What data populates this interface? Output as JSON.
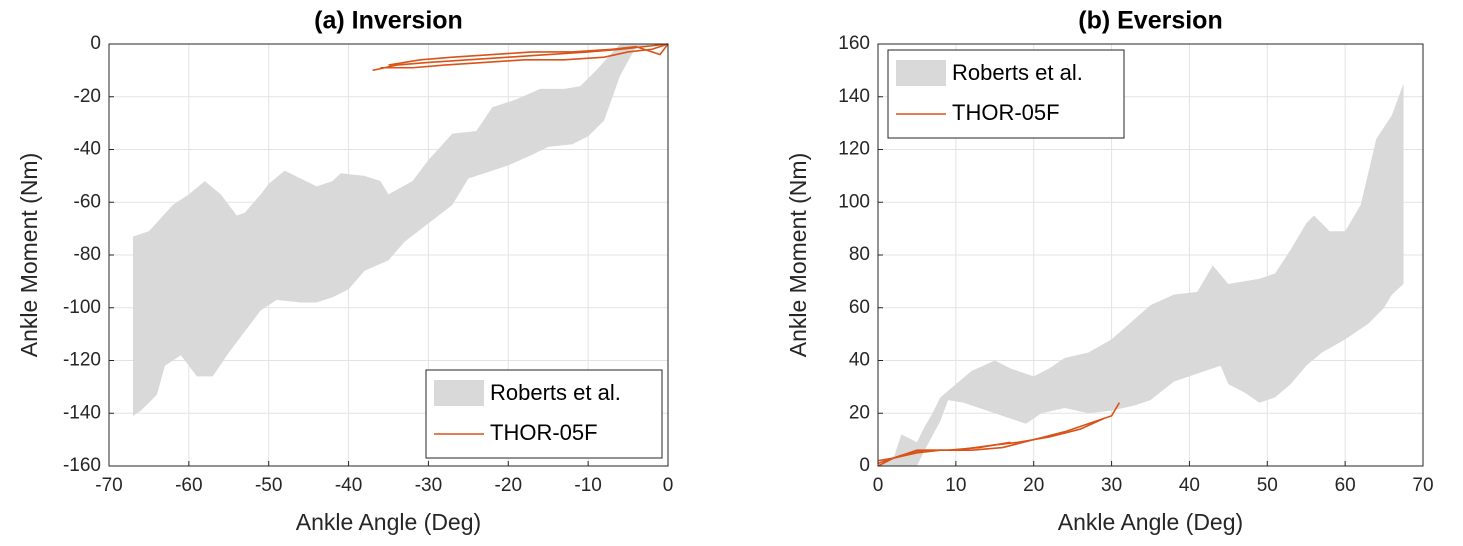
{
  "chart_data": [
    {
      "type": "corridor",
      "title": "(a) Inversion",
      "x_label": "Ankle Angle (Deg)",
      "y_label": "Ankle Moment (Nm)",
      "xlim": [
        -70,
        0
      ],
      "xticks": [
        -70,
        -60,
        -50,
        -40,
        -30,
        -20,
        -10,
        0
      ],
      "ylim": [
        -160,
        0
      ],
      "yticks": [
        -160,
        -140,
        -120,
        -100,
        -80,
        -60,
        -40,
        -20,
        0
      ],
      "grid": true,
      "legend": "lower right",
      "series": [
        {
          "name": "Roberts et al.",
          "color": "#d9d9d9",
          "x_upper": [
            -67,
            -65,
            -62,
            -60,
            -58,
            -56,
            -54,
            -53,
            -51,
            -50,
            -48,
            -46,
            -44,
            -42,
            -41,
            -38,
            -36,
            -35,
            -32,
            -30,
            -27,
            -24,
            -22,
            -19,
            -16,
            -13,
            -11,
            -9,
            -6,
            -5,
            0
          ],
          "upper": [
            -73,
            -71,
            -61,
            -57,
            -52,
            -57,
            -65,
            -64,
            -57,
            -53,
            -48,
            -51,
            -54,
            -52,
            -49,
            -50,
            -52,
            -57,
            -52,
            -44,
            -34,
            -33,
            -24,
            -21,
            -17,
            -17,
            -16,
            -10,
            0,
            0,
            0
          ],
          "x_lower": [
            -67,
            -66,
            -64,
            -63,
            -61,
            -59,
            -57,
            -55,
            -53,
            -51,
            -49,
            -46,
            -44,
            -42,
            -40,
            -38,
            -35,
            -33,
            -30,
            -27,
            -25,
            -20,
            -17,
            -15,
            -12,
            -10,
            -8,
            -6,
            -4,
            0
          ],
          "lower": [
            -141,
            -139,
            -133,
            -122,
            -118,
            -126,
            -126,
            -117,
            -109,
            -101,
            -97,
            -98,
            -98,
            -96,
            -93,
            -86,
            -82,
            -75,
            -68,
            -61,
            -51,
            -46,
            -42,
            -39,
            -38,
            -35,
            -29,
            -12,
            -1,
            0
          ]
        },
        {
          "name": "THOR-05F",
          "color": "#d95319",
          "traces": [
            {
              "x": [
                -37,
                -34,
                -30,
                -25,
                -20,
                -15,
                -10,
                -6,
                -3,
                0
              ],
              "values": [
                -10,
                -8,
                -7,
                -6,
                -5,
                -4,
                -3,
                -2,
                -1,
                0
              ]
            },
            {
              "x": [
                -36,
                -32,
                -28,
                -23,
                -18,
                -13,
                -8,
                -5,
                -2,
                0
              ],
              "values": [
                -9,
                -9,
                -8,
                -7,
                -6,
                -6,
                -5,
                -3,
                -2,
                0
              ]
            },
            {
              "x": [
                -35,
                -31,
                -27,
                -22,
                -17,
                -12,
                -7,
                -4,
                -1,
                0
              ],
              "values": [
                -8,
                -6,
                -5,
                -4,
                -3,
                -3,
                -2,
                -1,
                -4,
                0
              ]
            }
          ]
        }
      ]
    },
    {
      "type": "corridor",
      "title": "(b) Eversion",
      "x_label": "Ankle Angle (Deg)",
      "y_label": "Ankle Moment (Nm)",
      "xlim": [
        0,
        70
      ],
      "xticks": [
        0,
        10,
        20,
        30,
        40,
        50,
        60,
        70
      ],
      "ylim": [
        0,
        160
      ],
      "yticks": [
        0,
        20,
        40,
        60,
        80,
        100,
        120,
        140,
        160
      ],
      "grid": true,
      "legend": "upper left",
      "series": [
        {
          "name": "Roberts et al.",
          "color": "#d9d9d9",
          "x_upper": [
            0,
            2,
            3,
            5,
            6,
            7,
            8,
            10,
            12,
            15,
            17,
            20,
            22,
            24,
            27,
            30,
            35,
            38,
            41,
            43,
            45,
            49,
            51,
            53,
            55,
            56,
            58,
            60,
            62,
            64,
            66,
            67.5
          ],
          "upper": [
            0,
            3,
            12,
            9,
            15,
            20,
            26,
            31,
            36,
            40,
            37,
            34,
            37,
            41,
            43,
            48,
            61,
            65,
            66,
            76,
            69,
            71,
            73,
            82,
            92,
            95,
            89,
            89,
            99,
            124,
            133,
            145
          ],
          "x_lower": [
            0,
            5,
            6,
            8,
            9,
            11,
            14,
            17,
            19,
            21,
            24,
            27,
            30,
            33,
            35,
            38,
            42,
            44,
            45,
            47,
            49,
            51,
            53,
            55,
            57,
            60,
            63,
            65,
            66,
            67.5
          ],
          "lower": [
            0,
            0,
            6,
            17,
            25,
            24,
            21,
            18,
            16,
            20,
            22,
            20,
            21,
            23,
            25,
            32,
            36,
            38,
            31,
            28,
            24,
            26,
            31,
            38,
            43,
            48,
            54,
            60,
            65,
            69
          ]
        },
        {
          "name": "THOR-05F",
          "color": "#d95319",
          "traces": [
            {
              "x": [
                0,
                2,
                5,
                8,
                12,
                16,
                20,
                24,
                28,
                30,
                31
              ],
              "values": [
                2,
                3,
                5,
                6,
                6,
                7,
                10,
                13,
                17,
                19,
                24
              ]
            },
            {
              "x": [
                0,
                3,
                6,
                9,
                13,
                17
              ],
              "values": [
                1,
                4,
                6,
                6,
                7,
                9
              ]
            },
            {
              "x": [
                0,
                2,
                5,
                10,
                15,
                18,
                22,
                26,
                29
              ],
              "values": [
                0,
                3,
                6,
                6,
                8,
                9,
                11,
                14,
                18
              ]
            }
          ]
        }
      ]
    }
  ]
}
